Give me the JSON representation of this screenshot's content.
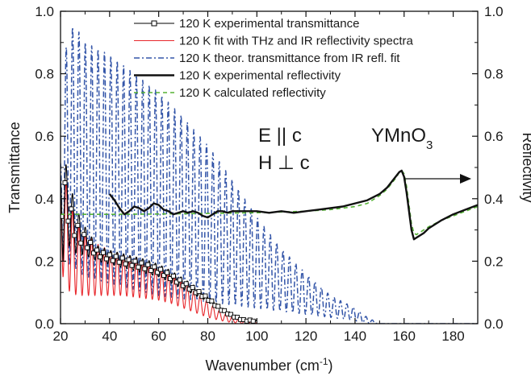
{
  "chart_data": {
    "type": "line",
    "xlabel_main": "Wavenumber (cm",
    "xlabel_sup": "-1",
    "xlabel_tail": ")",
    "ylabel_left": "Transmittance",
    "ylabel_right": "Reflectivity",
    "xlim": [
      20,
      190
    ],
    "ylim_left": [
      0.0,
      1.0
    ],
    "ylim_right": [
      0.0,
      1.0
    ],
    "x_ticks": [
      20,
      40,
      60,
      80,
      100,
      120,
      140,
      160,
      180
    ],
    "x_tick_labels": [
      "20",
      "40",
      "60",
      "80",
      "100",
      "120",
      "140",
      "160",
      "180"
    ],
    "y_ticks": [
      0.0,
      0.2,
      0.4,
      0.6,
      0.8,
      1.0
    ],
    "y_tick_labels": [
      "0.0",
      "0.2",
      "0.4",
      "0.6",
      "0.8",
      "1.0"
    ],
    "legend_position": "top-right",
    "annotations": {
      "e_par_c": "E || c",
      "h_perp_c": "H ⊥ c",
      "compound_main": "YMnO",
      "compound_sub": "3"
    },
    "series": [
      {
        "name": "120 K experimental transmittance",
        "color": "#000000",
        "style": "solid-with-square-markers",
        "axis": "left",
        "oscillation_period": 2.6,
        "envelope": {
          "x": [
            20,
            21,
            22,
            24,
            27,
            30,
            35,
            40,
            45,
            50,
            55,
            60,
            65,
            70,
            75,
            80,
            85,
            90,
            95,
            100
          ],
          "min": [
            0.28,
            0.2,
            0.28,
            0.24,
            0.22,
            0.22,
            0.2,
            0.19,
            0.18,
            0.17,
            0.16,
            0.15,
            0.13,
            0.11,
            0.09,
            0.07,
            0.04,
            0.02,
            0.005,
            0.005
          ],
          "max": [
            0.5,
            0.62,
            0.52,
            0.44,
            0.36,
            0.31,
            0.25,
            0.235,
            0.225,
            0.215,
            0.205,
            0.19,
            0.17,
            0.145,
            0.12,
            0.09,
            0.055,
            0.03,
            0.015,
            0.015
          ]
        }
      },
      {
        "name": "120 K fit with THz and IR reflectivity spectra",
        "color": "#e8262b",
        "style": "solid",
        "axis": "left",
        "oscillation_period": 2.6,
        "envelope": {
          "x": [
            20,
            21,
            22,
            24,
            27,
            30,
            35,
            40,
            45,
            50,
            55,
            60,
            65,
            70,
            75,
            80,
            85,
            90,
            95,
            100
          ],
          "min": [
            0.23,
            0.15,
            0.12,
            0.1,
            0.09,
            0.09,
            0.09,
            0.09,
            0.09,
            0.085,
            0.08,
            0.075,
            0.065,
            0.05,
            0.035,
            0.02,
            0.01,
            0.003,
            0.0,
            0.0
          ],
          "max": [
            0.45,
            0.55,
            0.47,
            0.39,
            0.32,
            0.29,
            0.255,
            0.235,
            0.22,
            0.21,
            0.195,
            0.175,
            0.155,
            0.13,
            0.1,
            0.07,
            0.04,
            0.02,
            0.008,
            0.004
          ]
        }
      },
      {
        "name": "120 K theor. transmittance from IR refl. fit",
        "color": "#3355a8",
        "style": "dash-dot",
        "axis": "left",
        "oscillation_period": 2.6,
        "envelope": {
          "x": [
            20,
            21,
            23,
            25,
            27,
            30,
            40,
            50,
            60,
            70,
            80,
            90,
            100,
            110,
            120,
            130,
            140,
            145,
            150,
            190
          ],
          "min": [
            0.26,
            0.2,
            0.19,
            0.18,
            0.17,
            0.15,
            0.13,
            0.11,
            0.09,
            0.08,
            0.07,
            0.06,
            0.05,
            0.04,
            0.03,
            0.02,
            0.01,
            0.0,
            0.0,
            0.0
          ],
          "max": [
            0.55,
            0.8,
            0.93,
            0.95,
            0.94,
            0.9,
            0.86,
            0.8,
            0.74,
            0.66,
            0.57,
            0.46,
            0.34,
            0.24,
            0.16,
            0.09,
            0.05,
            0.02,
            0.0,
            0.0
          ]
        }
      },
      {
        "name": "120 K experimental reflectivity",
        "color": "#111111",
        "style": "thick-solid",
        "axis": "right",
        "x": [
          40,
          42,
          44,
          46,
          48,
          50,
          52,
          54,
          56,
          58,
          60,
          62,
          64,
          66,
          68,
          70,
          72,
          74,
          76,
          78,
          80,
          82,
          84,
          86,
          88,
          90,
          95,
          100,
          105,
          110,
          115,
          120,
          125,
          130,
          135,
          140,
          145,
          150,
          153,
          155,
          157,
          158,
          159,
          160,
          161,
          162,
          163,
          164,
          165,
          168,
          170,
          175,
          180,
          185,
          190
        ],
        "y": [
          0.415,
          0.395,
          0.37,
          0.35,
          0.36,
          0.375,
          0.37,
          0.36,
          0.37,
          0.385,
          0.38,
          0.365,
          0.36,
          0.35,
          0.355,
          0.36,
          0.355,
          0.36,
          0.355,
          0.345,
          0.34,
          0.35,
          0.36,
          0.36,
          0.355,
          0.36,
          0.36,
          0.36,
          0.355,
          0.36,
          0.355,
          0.36,
          0.365,
          0.37,
          0.375,
          0.385,
          0.395,
          0.415,
          0.435,
          0.455,
          0.475,
          0.485,
          0.49,
          0.47,
          0.42,
          0.36,
          0.3,
          0.27,
          0.275,
          0.29,
          0.305,
          0.33,
          0.35,
          0.365,
          0.38
        ]
      },
      {
        "name": "120 K calculated reflectivity",
        "color": "#55b234",
        "style": "dashed",
        "axis": "right",
        "x": [
          20,
          30,
          40,
          60,
          80,
          100,
          120,
          130,
          140,
          145,
          150,
          153,
          155,
          157,
          158,
          159,
          160,
          161,
          162,
          163,
          164,
          165,
          168,
          170,
          175,
          180,
          185,
          190
        ],
        "y": [
          0.35,
          0.35,
          0.35,
          0.351,
          0.353,
          0.355,
          0.36,
          0.365,
          0.375,
          0.385,
          0.41,
          0.43,
          0.45,
          0.47,
          0.485,
          0.49,
          0.48,
          0.44,
          0.38,
          0.32,
          0.29,
          0.285,
          0.3,
          0.31,
          0.33,
          0.345,
          0.36,
          0.375
        ]
      }
    ]
  }
}
